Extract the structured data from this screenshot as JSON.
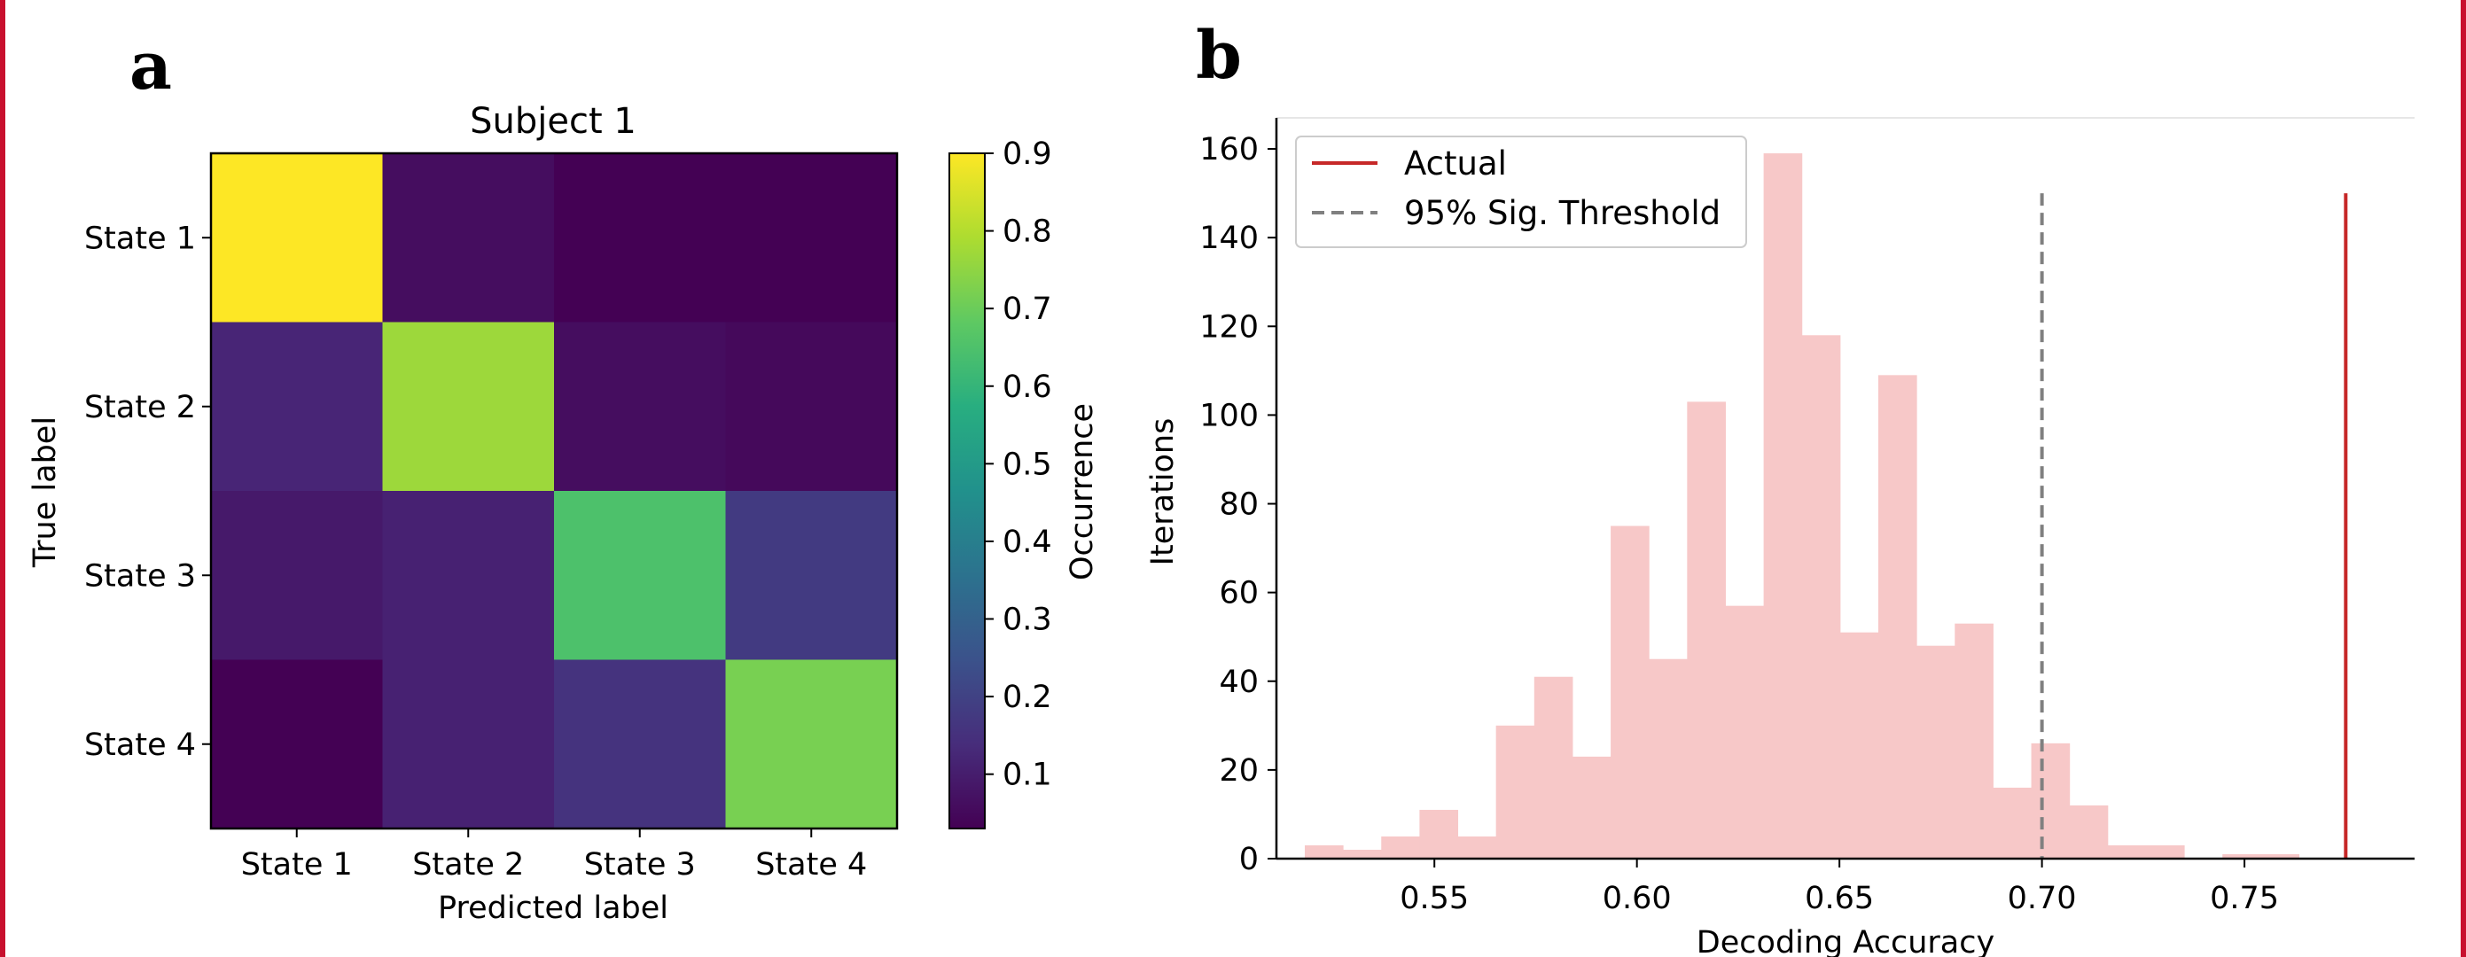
{
  "panels": {
    "a": "a",
    "b": "b"
  },
  "chart_data": [
    {
      "type": "heatmap",
      "title": "Subject 1",
      "xlabel": "Predicted label",
      "ylabel": "True label",
      "x_categories": [
        "State 1",
        "State 2",
        "State 3",
        "State 4"
      ],
      "y_categories": [
        "State 1",
        "State 2",
        "State 3",
        "State 4"
      ],
      "values": [
        [
          0.9,
          0.06,
          0.03,
          0.03
        ],
        [
          0.12,
          0.77,
          0.06,
          0.05
        ],
        [
          0.09,
          0.11,
          0.65,
          0.18
        ],
        [
          0.03,
          0.11,
          0.16,
          0.72
        ]
      ],
      "colormap": "viridis",
      "colorbar": {
        "label": "Occurrence",
        "range": [
          0.03,
          0.9
        ],
        "ticks": [
          "0.1",
          "0.2",
          "0.3",
          "0.4",
          "0.5",
          "0.6",
          "0.7",
          "0.8",
          "0.9"
        ]
      }
    },
    {
      "type": "bar",
      "subtype": "histogram",
      "xlabel": "Decoding Accuracy",
      "ylabel": "Iterations",
      "xlim": [
        0.511,
        0.792
      ],
      "ylim": [
        0,
        167
      ],
      "x_ticks": [
        "0.55",
        "0.60",
        "0.65",
        "0.70",
        "0.75"
      ],
      "y_ticks": [
        "0",
        "20",
        "40",
        "60",
        "80",
        "100",
        "120",
        "140",
        "160"
      ],
      "bin_start": 0.518,
      "bin_width": 0.00944,
      "counts": [
        3,
        2,
        5,
        11,
        5,
        30,
        41,
        23,
        75,
        45,
        103,
        57,
        159,
        118,
        51,
        109,
        48,
        53,
        16,
        26,
        12,
        3,
        3,
        0,
        1,
        1
      ],
      "bar_color": "#f7c8c8",
      "lines": [
        {
          "name": "Actual",
          "x": 0.775,
          "y_top": 150,
          "color": "#c62828",
          "style": "solid"
        },
        {
          "name": "95% Sig. Threshold",
          "x": 0.7,
          "y_top": 150,
          "color": "#808080",
          "style": "dashed"
        }
      ],
      "legend_placement": "upper-left"
    }
  ]
}
